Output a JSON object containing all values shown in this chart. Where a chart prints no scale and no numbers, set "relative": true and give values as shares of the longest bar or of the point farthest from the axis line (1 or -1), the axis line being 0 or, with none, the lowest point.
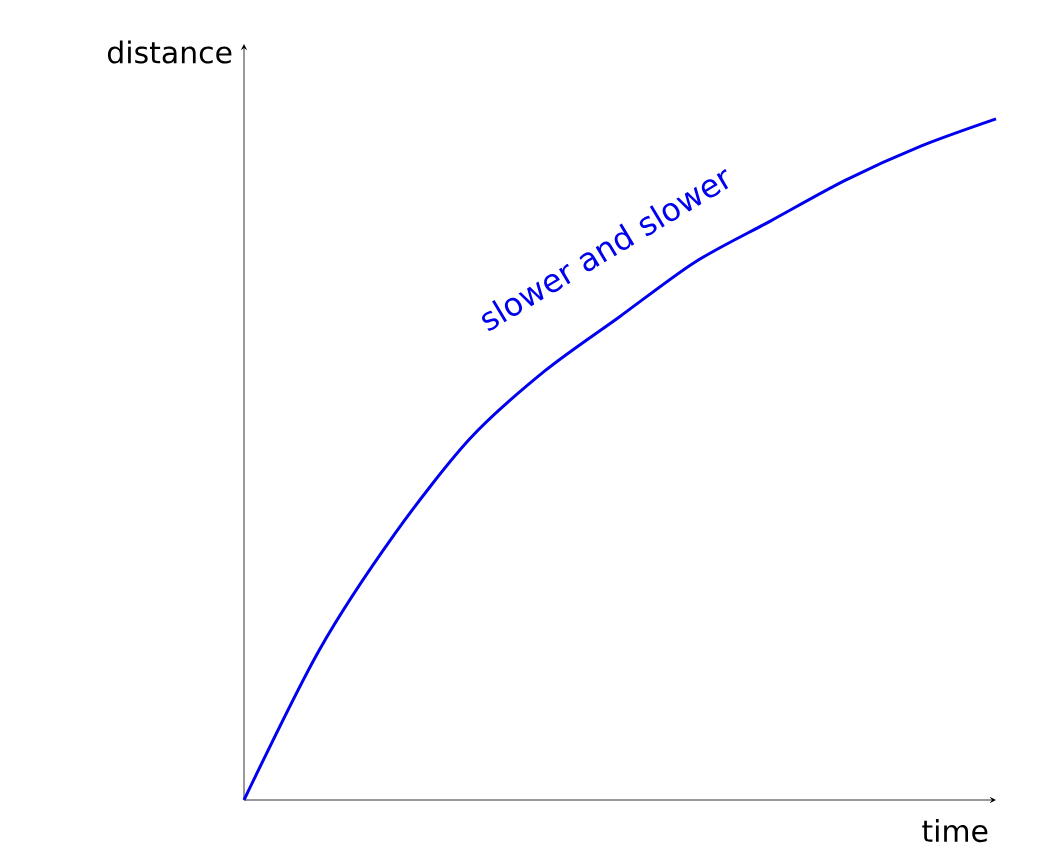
{
  "chart_data": {
    "type": "line",
    "relative": true,
    "xlabel": "time",
    "ylabel": "distance",
    "categories": [
      null,
      null,
      null,
      null,
      null,
      null,
      null,
      null,
      null,
      null,
      null
    ],
    "series": [
      {
        "color": "#0000ee",
        "values": [
          0,
          0.22,
          0.39,
          0.53,
          0.63,
          0.71,
          0.79,
          0.85,
          0.91,
          0.96,
          1.0
        ]
      }
    ],
    "annotations": [
      "slower and slower"
    ]
  }
}
